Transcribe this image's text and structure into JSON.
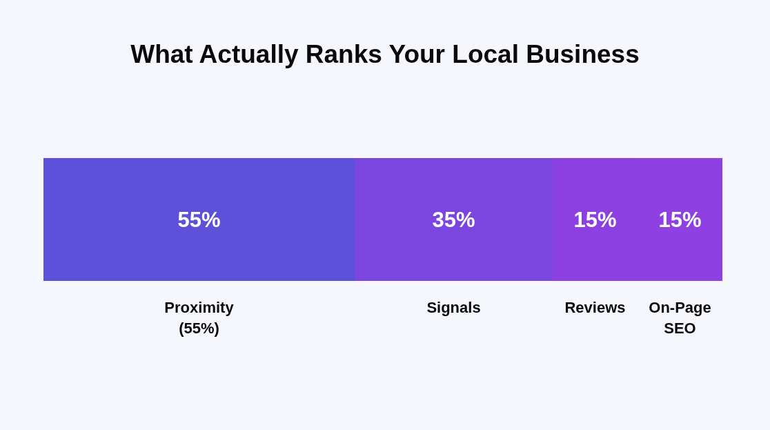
{
  "chart_data": {
    "type": "bar",
    "title": "What Actually Ranks Your Local Business",
    "orientation": "horizontal",
    "stacked": true,
    "categories": [
      null
    ],
    "series": [
      {
        "name": "Proximity (55%)",
        "color": "#5d50d9",
        "values": [
          55
        ],
        "value_labels": [
          "55%"
        ]
      },
      {
        "name": "Signals",
        "color": "#7a46df",
        "values": [
          35
        ],
        "value_labels": [
          "35%"
        ]
      },
      {
        "name": "Reviews",
        "color": "#8d40e2",
        "values": [
          15
        ],
        "value_labels": [
          "15%"
        ]
      },
      {
        "name": "On-Page SEO",
        "color": "#8e40e3",
        "values": [
          15
        ],
        "value_labels": [
          "15%"
        ]
      }
    ]
  }
}
